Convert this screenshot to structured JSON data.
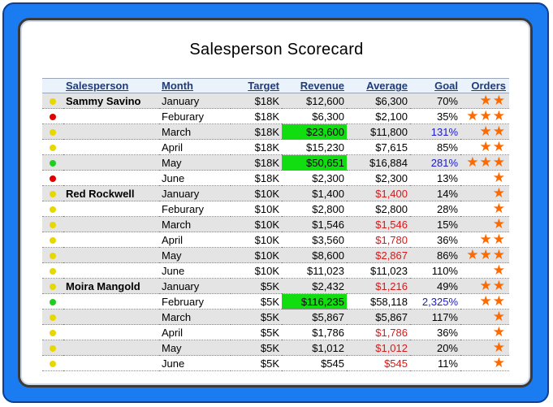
{
  "title": "Salesperson Scorecard",
  "columns": {
    "salesperson": "Salesperson",
    "month": "Month",
    "target": "Target",
    "revenue": "Revenue",
    "average": "Average",
    "goal": "Goal",
    "orders": "Orders"
  },
  "colors": {
    "frame": "#1a7cf0",
    "highlight": "#11dd11",
    "below_target": "#d61a1a",
    "above_goal": "#1a1acc",
    "star": "#ff6a00",
    "status_yellow": "#e6d800",
    "status_red": "#e00000",
    "status_green": "#1fcf1f"
  },
  "rows": [
    {
      "status": "yellow",
      "salesperson": "Sammy Savino",
      "month": "January",
      "target": "$18K",
      "revenue": "$12,600",
      "average": "$6,300",
      "goal": "70%",
      "orders": 2
    },
    {
      "status": "red",
      "salesperson": "",
      "month": "Feburary",
      "target": "$18K",
      "revenue": "$6,300",
      "average": "$2,100",
      "goal": "35%",
      "orders": 3
    },
    {
      "status": "yellow",
      "salesperson": "",
      "month": "March",
      "target": "$18K",
      "revenue": "$23,600",
      "average": "$11,800",
      "goal": "131%",
      "orders": 2
    },
    {
      "status": "yellow",
      "salesperson": "",
      "month": "April",
      "target": "$18K",
      "revenue": "$15,230",
      "average": "$7,615",
      "goal": "85%",
      "orders": 2
    },
    {
      "status": "green",
      "salesperson": "",
      "month": "May",
      "target": "$18K",
      "revenue": "$50,651",
      "average": "$16,884",
      "goal": "281%",
      "orders": 3
    },
    {
      "status": "red",
      "salesperson": "",
      "month": "June",
      "target": "$18K",
      "revenue": "$2,300",
      "average": "$2,300",
      "goal": "13%",
      "orders": 1
    },
    {
      "status": "yellow",
      "salesperson": "Red Rockwell",
      "month": "January",
      "target": "$10K",
      "revenue": "$1,400",
      "average": "$1,400",
      "goal": "14%",
      "orders": 1
    },
    {
      "status": "yellow",
      "salesperson": "",
      "month": "Feburary",
      "target": "$10K",
      "revenue": "$2,800",
      "average": "$2,800",
      "goal": "28%",
      "orders": 1
    },
    {
      "status": "yellow",
      "salesperson": "",
      "month": "March",
      "target": "$10K",
      "revenue": "$1,546",
      "average": "$1,546",
      "goal": "15%",
      "orders": 1
    },
    {
      "status": "yellow",
      "salesperson": "",
      "month": "April",
      "target": "$10K",
      "revenue": "$3,560",
      "average": "$1,780",
      "goal": "36%",
      "orders": 2
    },
    {
      "status": "yellow",
      "salesperson": "",
      "month": "May",
      "target": "$10K",
      "revenue": "$8,600",
      "average": "$2,867",
      "goal": "86%",
      "orders": 3
    },
    {
      "status": "yellow",
      "salesperson": "",
      "month": "June",
      "target": "$10K",
      "revenue": "$11,023",
      "average": "$11,023",
      "goal": "110%",
      "orders": 1
    },
    {
      "status": "yellow",
      "salesperson": "Moira Mangold",
      "month": "January",
      "target": "$5K",
      "revenue": "$2,432",
      "average": "$1,216",
      "goal": "49%",
      "orders": 2
    },
    {
      "status": "green",
      "salesperson": "",
      "month": "February",
      "target": "$5K",
      "revenue": "$116,235",
      "average": "$58,118",
      "goal": "2,325%",
      "orders": 2
    },
    {
      "status": "yellow",
      "salesperson": "",
      "month": "March",
      "target": "$5K",
      "revenue": "$5,867",
      "average": "$5,867",
      "goal": "117%",
      "orders": 1
    },
    {
      "status": "yellow",
      "salesperson": "",
      "month": "April",
      "target": "$5K",
      "revenue": "$1,786",
      "average": "$1,786",
      "goal": "36%",
      "orders": 1
    },
    {
      "status": "yellow",
      "salesperson": "",
      "month": "May",
      "target": "$5K",
      "revenue": "$1,012",
      "average": "$1,012",
      "goal": "20%",
      "orders": 1
    },
    {
      "status": "yellow",
      "salesperson": "",
      "month": "June",
      "target": "$5K",
      "revenue": "$545",
      "average": "$545",
      "goal": "11%",
      "orders": 1
    }
  ],
  "revenue_highlight_rows": [
    2,
    4,
    13
  ],
  "average_red_rows": [
    6,
    8,
    9,
    10,
    12,
    15,
    16,
    17
  ],
  "goal_blue_rows": [
    2,
    4,
    13
  ],
  "shaded_rows": [
    0,
    2,
    4,
    6,
    8,
    10,
    12,
    14,
    16
  ]
}
